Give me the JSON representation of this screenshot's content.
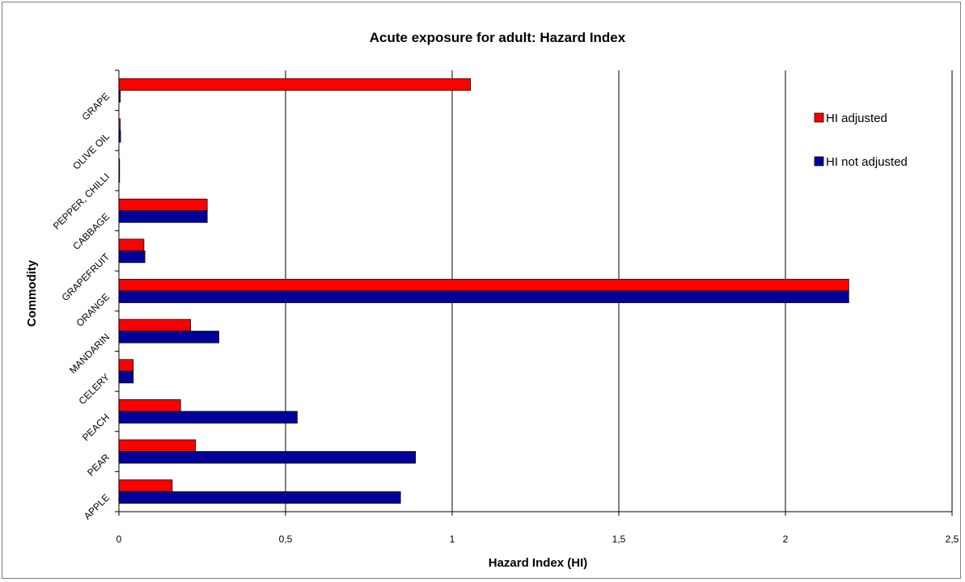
{
  "chart_data": {
    "type": "bar",
    "orientation": "horizontal",
    "title": "Acute exposure for adult: Hazard Index",
    "xlabel": "Hazard Index (HI)",
    "ylabel": "Commodity",
    "categories": [
      "APPLE",
      "PEAR",
      "PEACH",
      "CELERY",
      "MANDARIN",
      "ORANGE",
      "GRAPEFRUIT",
      "CABBAGE",
      "PEPPER, CHILLI",
      "OLIVE OIL",
      "GRAPE"
    ],
    "series": [
      {
        "name": "HI adjusted",
        "color": "#ff0000",
        "values": [
          0.16,
          0.23,
          0.185,
          0.043,
          0.215,
          2.19,
          0.075,
          0.265,
          0.002,
          0.004,
          1.055
        ]
      },
      {
        "name": "HI not adjusted",
        "color": "#000099",
        "values": [
          0.845,
          0.89,
          0.535,
          0.043,
          0.3,
          2.19,
          0.078,
          0.265,
          0.001,
          0.005,
          0.004
        ]
      }
    ],
    "xlim": [
      0,
      2.5
    ],
    "xticks": [
      "0",
      "0,5",
      "1",
      "1,5",
      "2",
      "2,5"
    ],
    "xtick_values": [
      0,
      0.5,
      1,
      1.5,
      2,
      2.5
    ],
    "grid": "vertical",
    "legend_position": "right"
  }
}
